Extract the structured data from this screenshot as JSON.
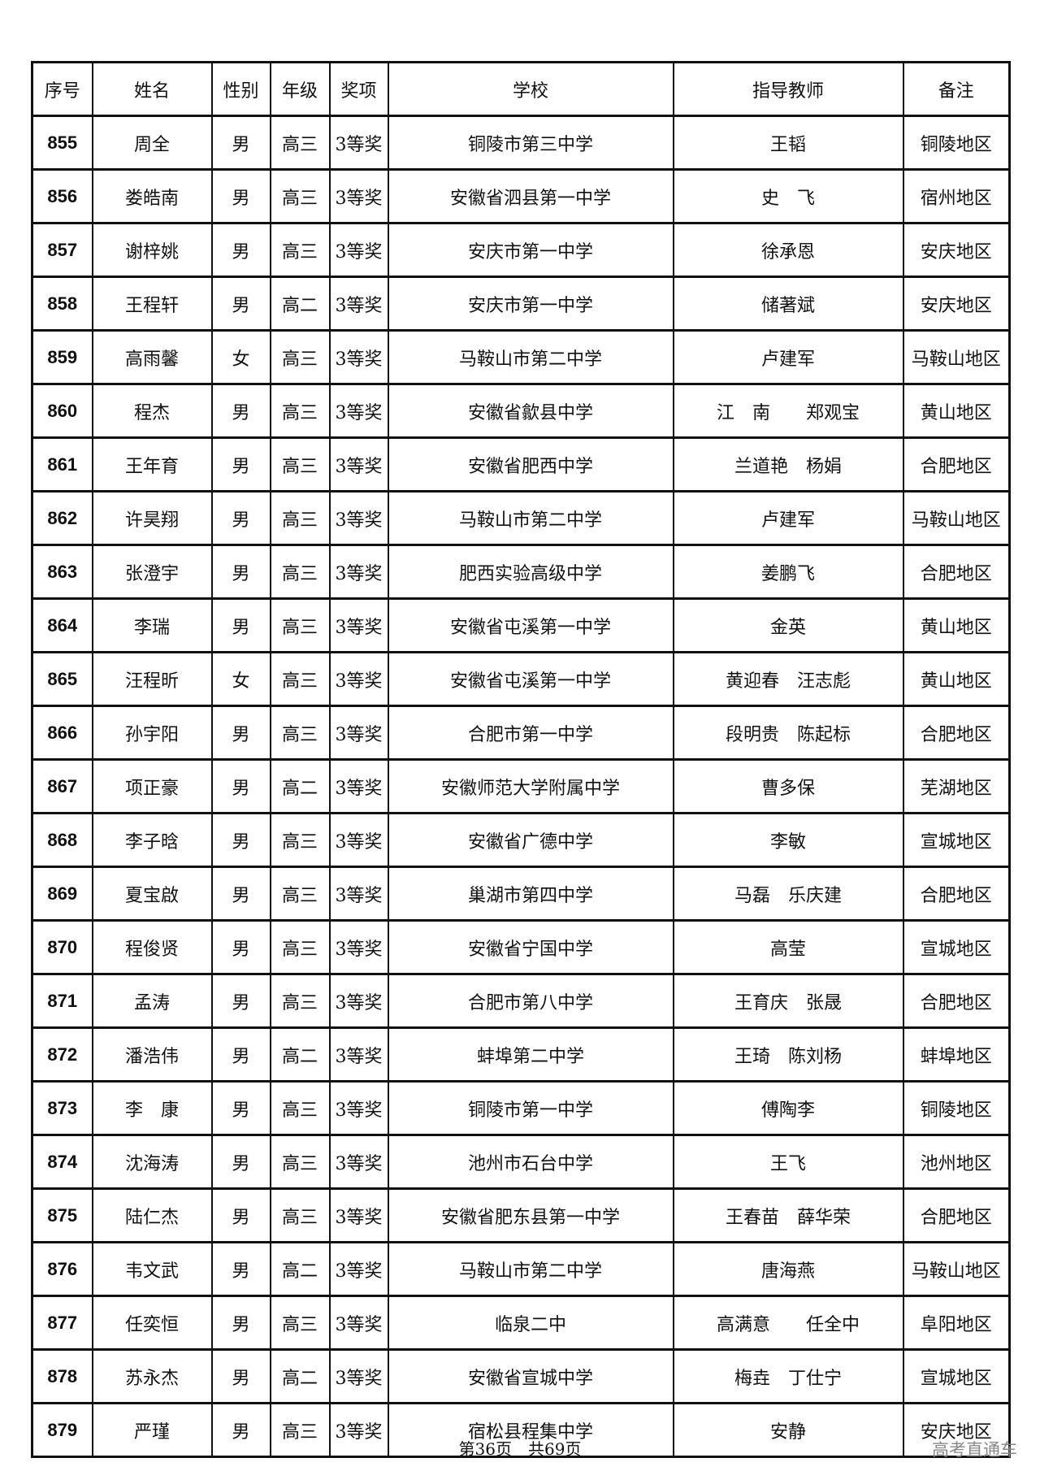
{
  "headers": [
    "序号",
    "姓名",
    "性别",
    "年级",
    "奖项",
    "学校",
    "指导教师",
    "备注"
  ],
  "rows": [
    [
      "855",
      "周全",
      "男",
      "高三",
      "3等奖",
      "铜陵市第三中学",
      "王韬",
      "铜陵地区"
    ],
    [
      "856",
      "娄皓南",
      "男",
      "高三",
      "3等奖",
      "安徽省泗县第一中学",
      "史　飞",
      "宿州地区"
    ],
    [
      "857",
      "谢梓姚",
      "男",
      "高三",
      "3等奖",
      "安庆市第一中学",
      "徐承恩",
      "安庆地区"
    ],
    [
      "858",
      "王程轩",
      "男",
      "高二",
      "3等奖",
      "安庆市第一中学",
      "储著斌",
      "安庆地区"
    ],
    [
      "859",
      "高雨馨",
      "女",
      "高三",
      "3等奖",
      "马鞍山市第二中学",
      "卢建军",
      "马鞍山地区"
    ],
    [
      "860",
      "程杰",
      "男",
      "高三",
      "3等奖",
      "安徽省歙县中学",
      "江　南　　郑观宝",
      "黄山地区"
    ],
    [
      "861",
      "王年育",
      "男",
      "高三",
      "3等奖",
      "安徽省肥西中学",
      "兰道艳　杨娟",
      "合肥地区"
    ],
    [
      "862",
      "许昊翔",
      "男",
      "高三",
      "3等奖",
      "马鞍山市第二中学",
      "卢建军",
      "马鞍山地区"
    ],
    [
      "863",
      "张澄宇",
      "男",
      "高三",
      "3等奖",
      "肥西实验高级中学",
      "姜鹏飞",
      "合肥地区"
    ],
    [
      "864",
      "李瑞",
      "男",
      "高三",
      "3等奖",
      "安徽省屯溪第一中学",
      "金英",
      "黄山地区"
    ],
    [
      "865",
      "汪程昕",
      "女",
      "高三",
      "3等奖",
      "安徽省屯溪第一中学",
      "黄迎春　汪志彪",
      "黄山地区"
    ],
    [
      "866",
      "孙宇阳",
      "男",
      "高三",
      "3等奖",
      "合肥市第一中学",
      "段明贵　陈起标",
      "合肥地区"
    ],
    [
      "867",
      "项正豪",
      "男",
      "高二",
      "3等奖",
      "安徽师范大学附属中学",
      "曹多保",
      "芜湖地区"
    ],
    [
      "868",
      "李子晗",
      "男",
      "高三",
      "3等奖",
      "安徽省广德中学",
      "李敏",
      "宣城地区"
    ],
    [
      "869",
      "夏宝啟",
      "男",
      "高三",
      "3等奖",
      "巢湖市第四中学",
      "马磊　乐庆建",
      "合肥地区"
    ],
    [
      "870",
      "程俊贤",
      "男",
      "高三",
      "3等奖",
      "安徽省宁国中学",
      "高莹",
      "宣城地区"
    ],
    [
      "871",
      "孟涛",
      "男",
      "高三",
      "3等奖",
      "合肥市第八中学",
      "王育庆　张晟",
      "合肥地区"
    ],
    [
      "872",
      "潘浩伟",
      "男",
      "高二",
      "3等奖",
      "蚌埠第二中学",
      "王琦　陈刘杨",
      "蚌埠地区"
    ],
    [
      "873",
      "李　康",
      "男",
      "高三",
      "3等奖",
      "铜陵市第一中学",
      "傅陶李",
      "铜陵地区"
    ],
    [
      "874",
      "沈海涛",
      "男",
      "高三",
      "3等奖",
      "池州市石台中学",
      "王飞",
      "池州地区"
    ],
    [
      "875",
      "陆仁杰",
      "男",
      "高三",
      "3等奖",
      "安徽省肥东县第一中学",
      "王春苗　薛华荣",
      "合肥地区"
    ],
    [
      "876",
      "韦文武",
      "男",
      "高二",
      "3等奖",
      "马鞍山市第二中学",
      "唐海燕",
      "马鞍山地区"
    ],
    [
      "877",
      "任奕恒",
      "男",
      "高三",
      "3等奖",
      "临泉二中",
      "高满意　　任全中",
      "阜阳地区"
    ],
    [
      "878",
      "苏永杰",
      "男",
      "高二",
      "3等奖",
      "安徽省宣城中学",
      "梅垚　丁仕宁",
      "宣城地区"
    ],
    [
      "879",
      "严瑾",
      "男",
      "高三",
      "3等奖",
      "宿松县程集中学",
      "安静",
      "安庆地区"
    ]
  ],
  "footer": "第36页　共69页",
  "watermark": "高考直通车"
}
